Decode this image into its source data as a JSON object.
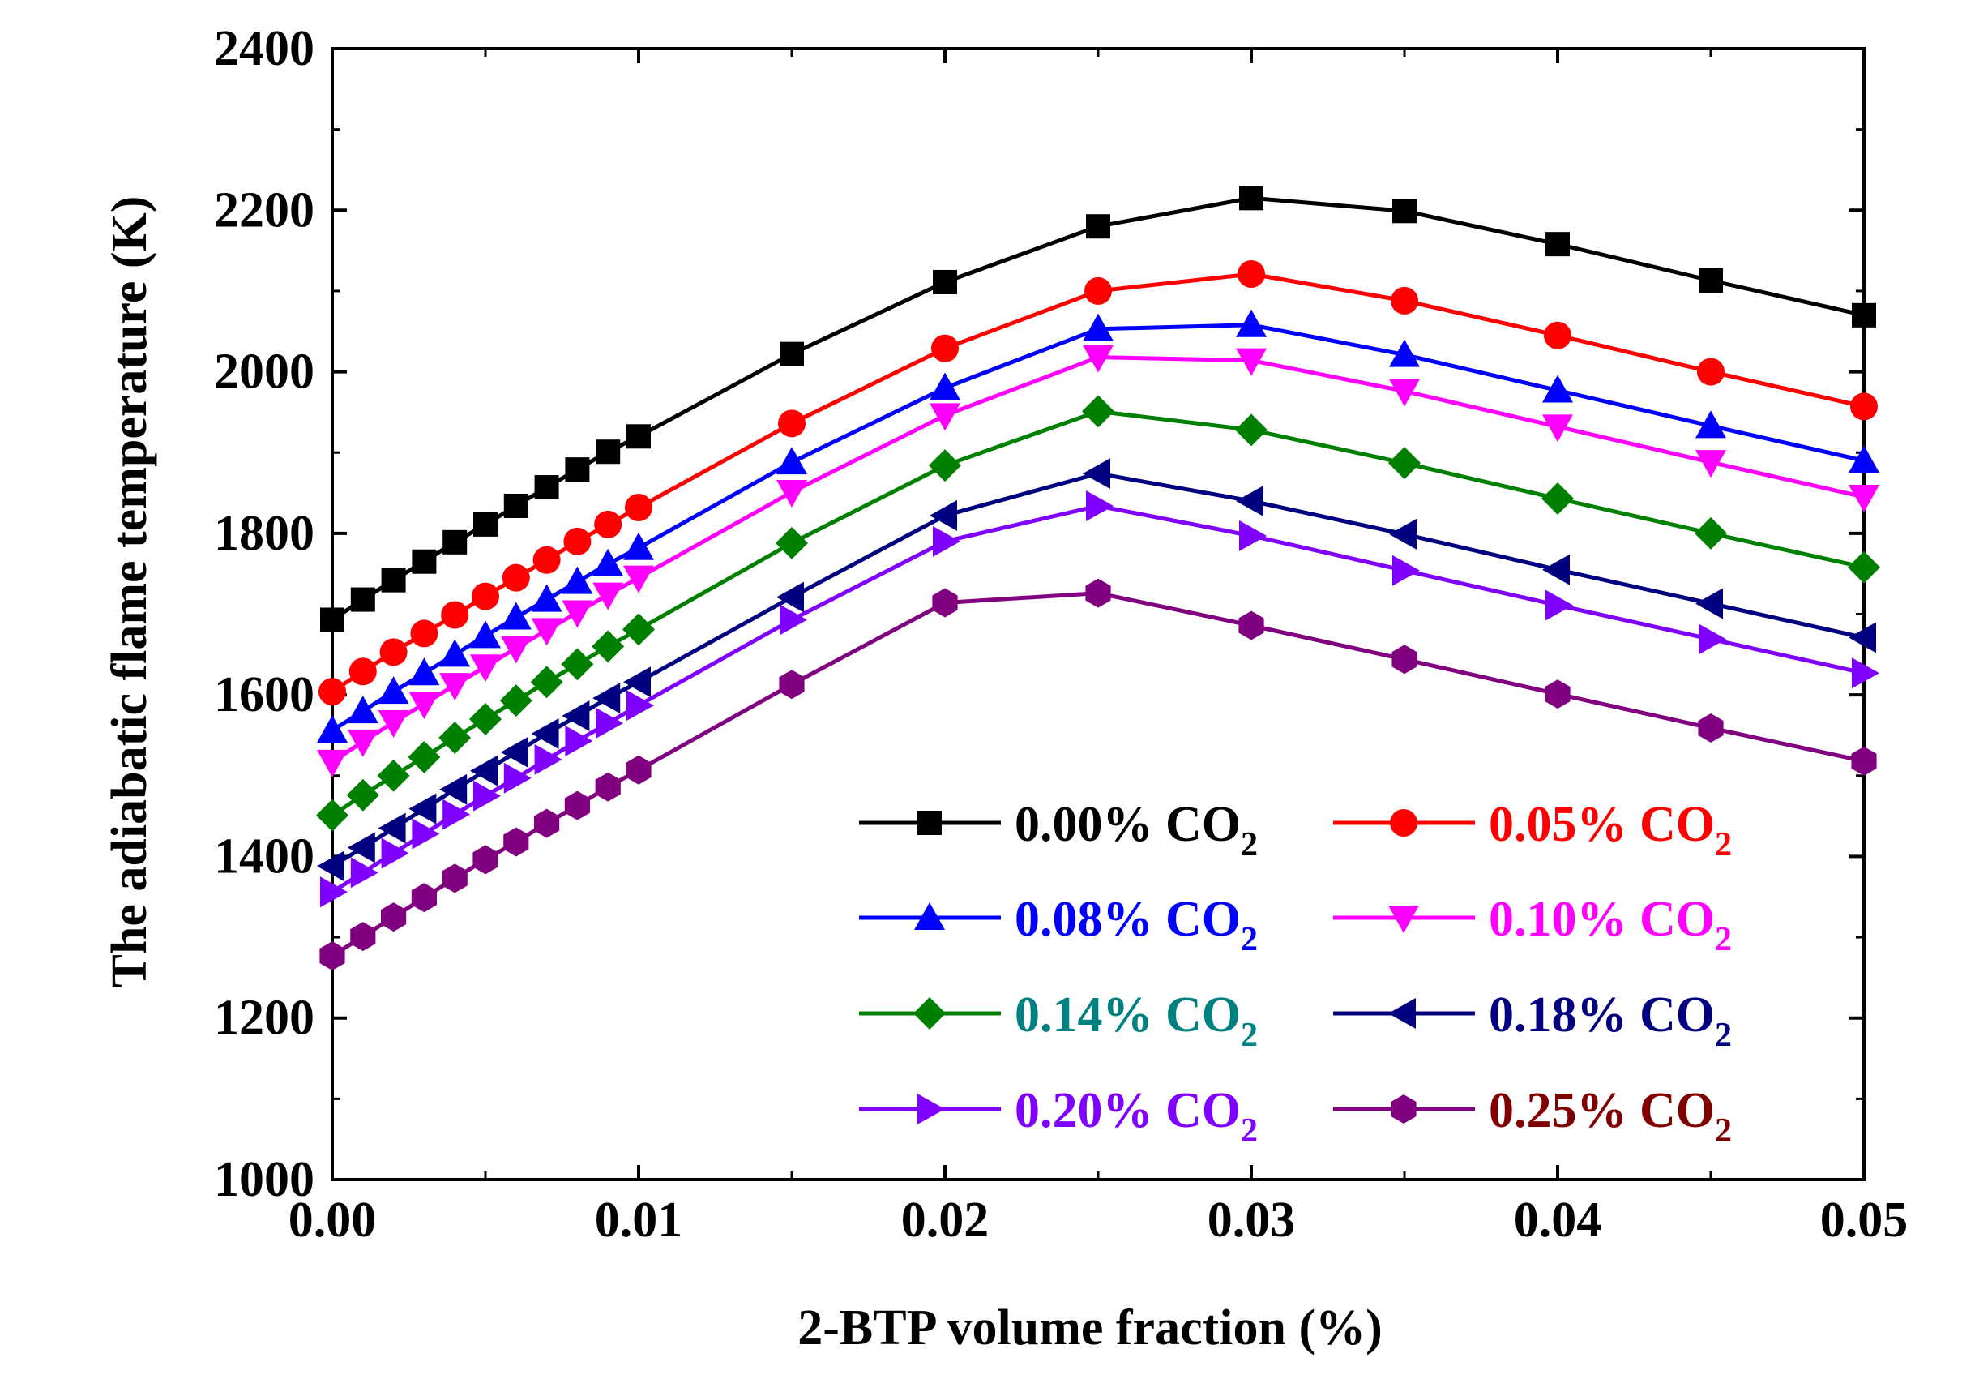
{
  "chart_data": {
    "type": "line",
    "xlabel": "2-BTP volume fraction (%)",
    "ylabel": "The adiabatic flame temperature (K)",
    "xlim": [
      0,
      0.05
    ],
    "ylim": [
      1000,
      2400
    ],
    "xticks": [
      0,
      0.01,
      0.02,
      0.03,
      0.04,
      0.05
    ],
    "xtick_labels": [
      "0.00",
      "0.01",
      "0.02",
      "0.03",
      "0.04",
      "0.05"
    ],
    "yticks": [
      1000,
      1200,
      1400,
      1600,
      1800,
      2000,
      2200,
      2400
    ],
    "ytick_labels": [
      "1000",
      "1200",
      "1400",
      "1600",
      "1800",
      "2000",
      "2200",
      "2400"
    ],
    "x": [
      0,
      0.001,
      0.002,
      0.003,
      0.004,
      0.005,
      0.006,
      0.007,
      0.008,
      0.009,
      0.01,
      0.015,
      0.02,
      0.025,
      0.03,
      0.035,
      0.04,
      0.045,
      0.05
    ],
    "legend_position": "lower-right",
    "series": [
      {
        "name": "0.00% CO2",
        "legend_main": "0.00% CO",
        "legend_sub": "2",
        "color": "#000000",
        "label_color": "#000000",
        "marker": "square",
        "values": [
          1693,
          1718,
          1742,
          1765,
          1789,
          1811,
          1834,
          1857,
          1879,
          1901,
          1920,
          2022,
          2111,
          2180,
          2215,
          2199,
          2158,
          2113,
          2070
        ]
      },
      {
        "name": "0.05% CO2",
        "legend_main": "0.05% CO",
        "legend_sub": "2",
        "color": "#ff0000",
        "label_color": "#ff0000",
        "marker": "circle",
        "values": [
          1604,
          1629,
          1653,
          1676,
          1699,
          1722,
          1745,
          1767,
          1790,
          1811,
          1832,
          1936,
          2029,
          2100,
          2121,
          2088,
          2045,
          2000,
          1957
        ]
      },
      {
        "name": "0.08% CO2",
        "legend_main": "0.08% CO",
        "legend_sub": "2",
        "color": "#0000ff",
        "label_color": "#0000ff",
        "marker": "triangle-up",
        "values": [
          1556,
          1580,
          1604,
          1627,
          1650,
          1673,
          1696,
          1718,
          1740,
          1762,
          1782,
          1888,
          1980,
          2053,
          2058,
          2021,
          1977,
          1933,
          1890
        ]
      },
      {
        "name": "0.10% CO2",
        "legend_main": "0.10% CO",
        "legend_sub": "2",
        "color": "#ff00ff",
        "label_color": "#ff00ff",
        "marker": "triangle-down",
        "values": [
          1517,
          1542,
          1566,
          1589,
          1612,
          1635,
          1658,
          1680,
          1702,
          1724,
          1745,
          1851,
          1946,
          2018,
          2014,
          1976,
          1932,
          1888,
          1845
        ]
      },
      {
        "name": "0.14% CO2",
        "legend_main": "0.14% CO",
        "legend_sub": "2",
        "color": "#008000",
        "label_color": "#008080",
        "marker": "diamond",
        "values": [
          1451,
          1476,
          1500,
          1523,
          1547,
          1570,
          1593,
          1616,
          1638,
          1660,
          1681,
          1788,
          1884,
          1951,
          1928,
          1887,
          1843,
          1800,
          1758
        ]
      },
      {
        "name": "0.18% CO2",
        "legend_main": "0.18% CO",
        "legend_sub": "2",
        "color": "#000080",
        "label_color": "#000080",
        "marker": "triangle-left",
        "values": [
          1388,
          1411,
          1435,
          1459,
          1483,
          1506,
          1529,
          1552,
          1574,
          1596,
          1616,
          1721,
          1822,
          1874,
          1840,
          1799,
          1755,
          1713,
          1671
        ]
      },
      {
        "name": "0.20% CO2",
        "legend_main": "0.20% CO",
        "legend_sub": "2",
        "color": "#8000ff",
        "label_color": "#8000ff",
        "marker": "triangle-right",
        "values": [
          1356,
          1380,
          1404,
          1428,
          1452,
          1475,
          1497,
          1520,
          1543,
          1565,
          1587,
          1693,
          1790,
          1834,
          1797,
          1754,
          1711,
          1669,
          1627
        ]
      },
      {
        "name": "0.25% CO2",
        "legend_main": "0.25% CO",
        "legend_sub": "2",
        "color": "#800080",
        "label_color": "#800000",
        "marker": "hexagon",
        "values": [
          1277,
          1301,
          1325,
          1349,
          1373,
          1396,
          1418,
          1441,
          1463,
          1486,
          1507,
          1613,
          1714,
          1726,
          1686,
          1644,
          1601,
          1559,
          1518
        ]
      }
    ]
  }
}
